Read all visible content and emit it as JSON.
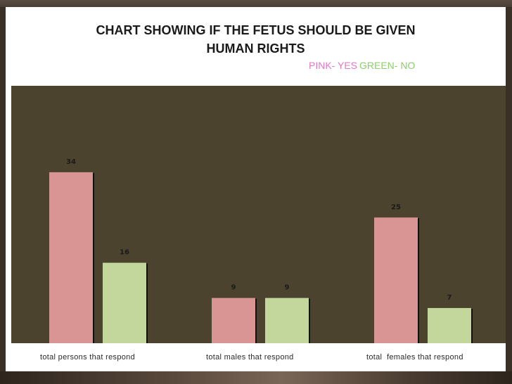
{
  "chart_data": {
    "type": "bar",
    "title_line1": "CHART SHOWING IF THE FETUS SHOULD BE GIVEN",
    "title_line2": "HUMAN RIGHTS",
    "legend_yes": "PINK- YES",
    "legend_no": "GREEN- NO",
    "categories": [
      "total persons that respond",
      "total males that respond",
      "total  females that respond"
    ],
    "series": [
      {
        "name": "PINK- YES",
        "values": [
          34,
          9,
          25
        ],
        "color": "#d99594"
      },
      {
        "name": "GREEN- NO",
        "values": [
          16,
          9,
          7
        ],
        "color": "#c3d69b"
      }
    ],
    "ylim": [
      0,
      40
    ],
    "grid": false,
    "legend_position": "top-right"
  },
  "colors": {
    "plot_background": "#4b432d",
    "yes_legend": "#e07ac6",
    "no_legend": "#8ed06a"
  }
}
